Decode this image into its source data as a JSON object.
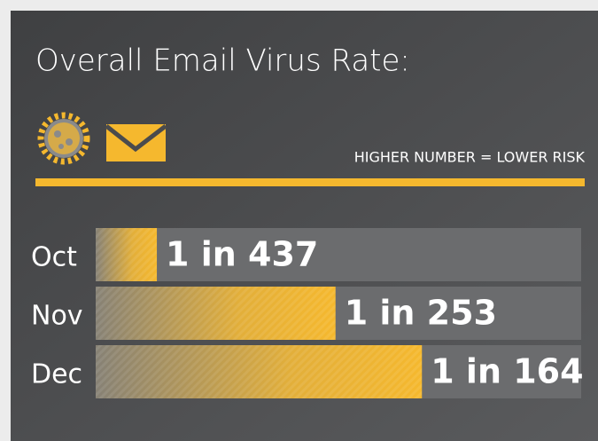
{
  "chart_data": {
    "type": "bar",
    "title": "Overall Email Virus Rate:",
    "annotation": "HIGHER NUMBER = LOWER RISK",
    "categories": [
      "Oct",
      "Nov",
      "Dec"
    ],
    "values": [
      437,
      253,
      164
    ],
    "value_labels": [
      "1 in 437",
      "1 in 253",
      "1 in 164"
    ],
    "xlim": [
      500,
      0
    ],
    "color": "#f5b82e"
  }
}
